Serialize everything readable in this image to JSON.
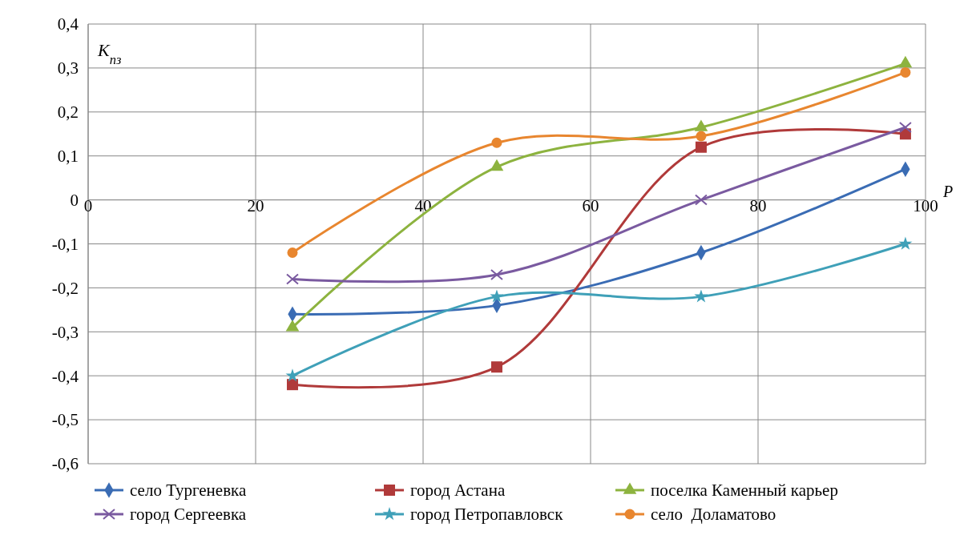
{
  "chart_data": {
    "type": "line",
    "ylabel": "K$_{пз}$",
    "xlabel": "P",
    "xlim": [
      0,
      100
    ],
    "xticks": [
      0,
      20,
      40,
      60,
      80,
      100
    ],
    "ylim": [
      -0.6,
      0.4
    ],
    "yticks": [
      {
        "value": -0.6,
        "label": "-0,6"
      },
      {
        "value": -0.5,
        "label": "-0,5"
      },
      {
        "value": -0.4,
        "label": "-0,4"
      },
      {
        "value": -0.3,
        "label": "-0,3"
      },
      {
        "value": -0.2,
        "label": "-0,2"
      },
      {
        "value": -0.1,
        "label": "-0,1"
      },
      0,
      {
        "value": 0.1,
        "label": "0,1"
      },
      {
        "value": 0.2,
        "label": "0,2"
      },
      {
        "value": 0.3,
        "label": "0,3"
      },
      {
        "value": 0.4,
        "label": "0,4"
      }
    ],
    "grid": true,
    "legend": "bottom",
    "line_style": "solid",
    "x": [
      24.4,
      48.8,
      73.2,
      97.6
    ],
    "series": [
      {
        "name": "село Тургеневка",
        "color": "#3a6cb4",
        "marker": "diamond",
        "values": [
          -0.26,
          -0.24,
          -0.12,
          0.07
        ]
      },
      {
        "name": "город Астана",
        "color": "#b03a3a",
        "marker": "square",
        "values": [
          -0.42,
          -0.38,
          0.12,
          0.15
        ]
      },
      {
        "name": "поселка Каменный карьер",
        "color": "#8db33f",
        "marker": "triangle",
        "values": [
          -0.29,
          0.075,
          0.165,
          0.31
        ]
      },
      {
        "name": "город Сергеевка",
        "color": "#7a5aa0",
        "marker": "cross",
        "values": [
          -0.18,
          -0.17,
          0,
          0.165
        ]
      },
      {
        "name": "город Петропавловск",
        "color": "#3fa0b8",
        "marker": "star",
        "values": [
          -0.4,
          -0.22,
          -0.22,
          -0.1
        ]
      },
      {
        "name": "село  Доламатово",
        "color": "#e8862f",
        "marker": "circle",
        "values": [
          -0.12,
          0.13,
          0.145,
          0.29
        ]
      }
    ]
  }
}
